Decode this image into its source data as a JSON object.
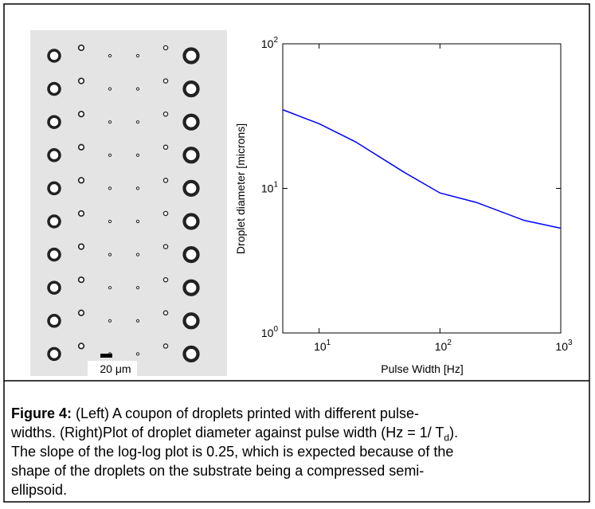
{
  "figure": {
    "scale_label": "20 μm"
  },
  "chart_data": {
    "type": "line",
    "xlabel": "Pulse Width [Hz]",
    "ylabel": "Droplet diameter [microns]",
    "xlog": true,
    "ylog": true,
    "x": [
      5,
      10,
      20,
      50,
      100,
      200,
      500,
      1000
    ],
    "series": [
      {
        "color": "#0000ff",
        "values": [
          35,
          28,
          21,
          13,
          9.3,
          8,
          6,
          5.3
        ]
      }
    ],
    "xlim": [
      5,
      1000
    ],
    "ylim": [
      1,
      100
    ],
    "xticks": [
      {
        "value": 10,
        "label": "10",
        "exponent": "1"
      },
      {
        "value": 100,
        "label": "10",
        "exponent": "2"
      },
      {
        "value": 1000,
        "label": "10",
        "exponent": "3"
      }
    ],
    "yticks": [
      {
        "value": 1,
        "label": "10",
        "exponent": "0"
      },
      {
        "value": 10,
        "label": "10",
        "exponent": "1"
      },
      {
        "value": 100,
        "label": "10",
        "exponent": "2"
      }
    ]
  },
  "caption": {
    "label": "Figure 4:",
    "line1": "(Left) A coupon of droplets printed with different pulse-",
    "line2a": "widths. (Right)Plot of droplet diameter against pulse width (Hz = 1/ T",
    "line2sub": "d",
    "line2b": ").",
    "line3": "The slope of the log-log plot is 0.25, which is expected because of the",
    "line4": "shape of the droplets on the substrate being a compressed semi-",
    "line5": "ellipsoid."
  }
}
